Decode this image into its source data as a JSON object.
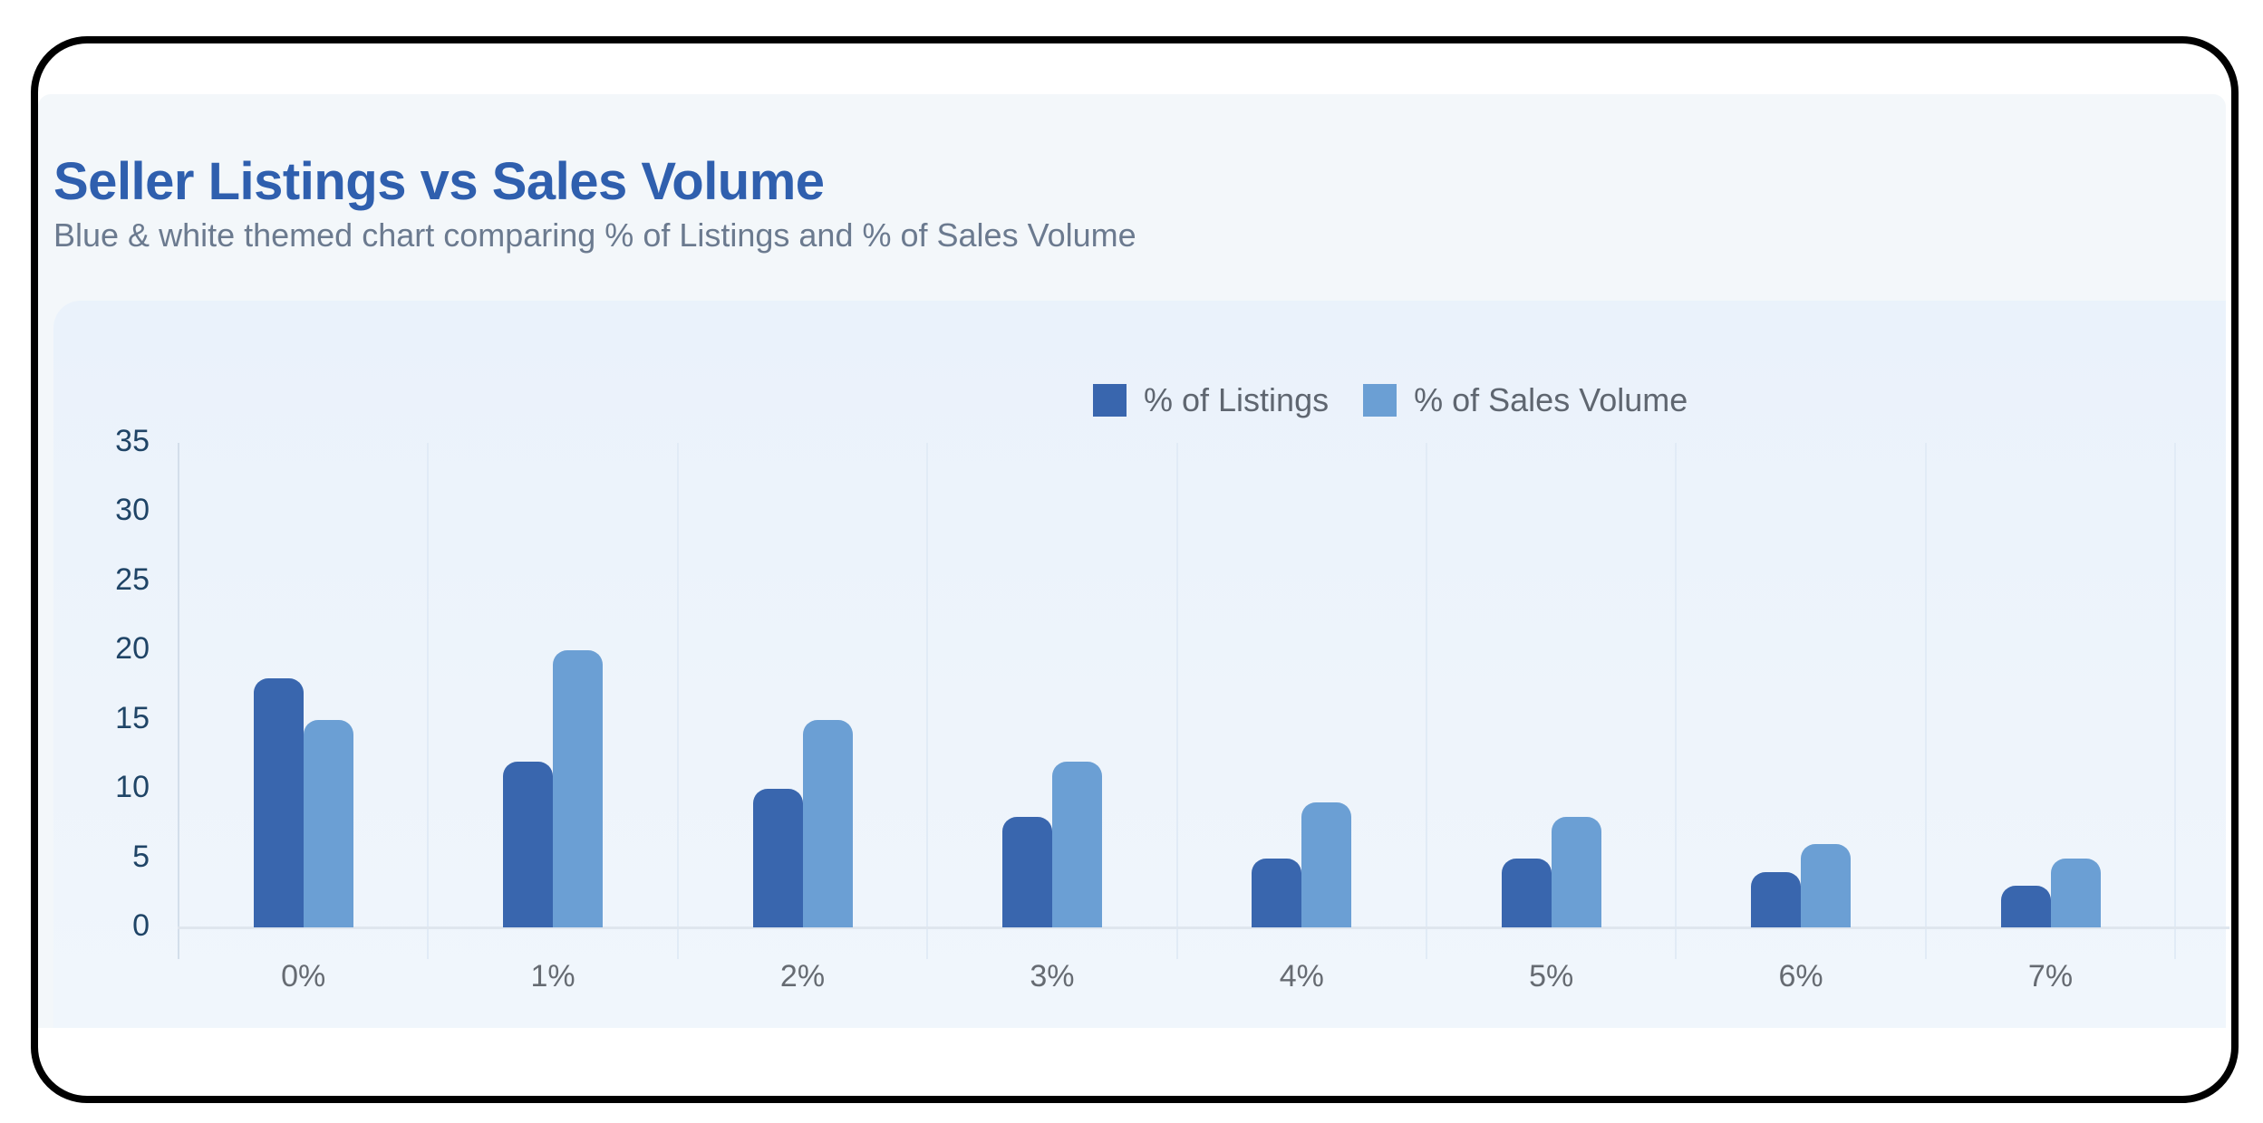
{
  "header": {
    "title": "Seller Listings vs Sales Volume",
    "subtitle": "Blue & white themed chart comparing % of Listings and % of Sales Volume"
  },
  "legend": {
    "items": [
      {
        "label": "% of Listings",
        "color": "#3966ae"
      },
      {
        "label": "% of Sales Volume",
        "color": "#6b9fd4"
      }
    ]
  },
  "colors": {
    "title": "#2f5fae",
    "subtitle": "#6b7a8f",
    "listings": "#3966ae",
    "sales_volume": "#6b9fd4",
    "card_background": "#f3f7fa",
    "panel_background": "#eaf2fb"
  },
  "chart_data": {
    "type": "bar",
    "title": "Seller Listings vs Sales Volume",
    "subtitle": "Blue & white themed chart comparing % of Listings and % of Sales Volume",
    "xlabel": "",
    "ylabel": "",
    "categories": [
      "0%",
      "1%",
      "2%",
      "3%",
      "4%",
      "5%",
      "6%",
      "7%"
    ],
    "series": [
      {
        "name": "% of Listings",
        "color": "#3966ae",
        "values": [
          18,
          12,
          10,
          8,
          5,
          5,
          4,
          3
        ]
      },
      {
        "name": "% of Sales Volume",
        "color": "#6b9fd4",
        "values": [
          15,
          20,
          15,
          12,
          9,
          8,
          6,
          5
        ]
      }
    ],
    "ylim": [
      0,
      35
    ],
    "yticks": [
      "0",
      "5",
      "10",
      "15",
      "20",
      "25",
      "30",
      "35"
    ],
    "grid": {
      "horizontal": false,
      "vertical": true
    },
    "legend_position": "top-center"
  }
}
